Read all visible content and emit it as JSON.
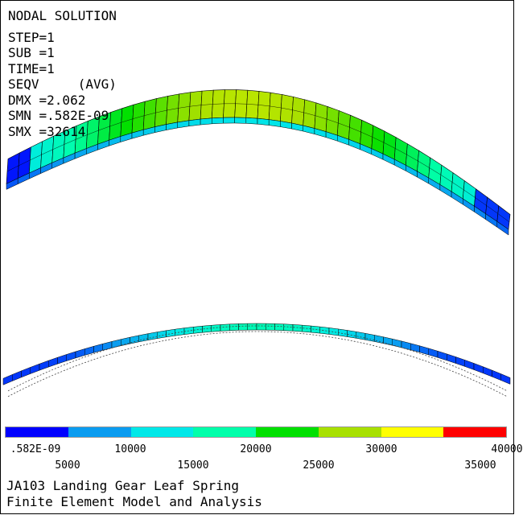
{
  "info": {
    "title": "NODAL SOLUTION",
    "step": "STEP=1",
    "sub": "SUB =1",
    "time": "TIME=1",
    "seqv": "SEQV     (AVG)",
    "dmx": "DMX =2.062",
    "smn": "SMN =.582E-09",
    "smx": "SMX =32614"
  },
  "legend": {
    "colors": [
      "#0000ff",
      "#0a9cf0",
      "#00e8e8",
      "#00ffaa",
      "#00e000",
      "#a8e000",
      "#ffff00",
      "#ff0000"
    ],
    "labels": [
      ".582E-09",
      "5000",
      "10000",
      "15000",
      "20000",
      "25000",
      "30000",
      "35000",
      "40000"
    ]
  },
  "caption": {
    "line1": "JA103 Landing Gear Leaf Spring",
    "line2": "Finite Element Model and Analysis"
  },
  "model": {
    "mesh_color": "#000000",
    "undeformed_color": "#444444"
  }
}
